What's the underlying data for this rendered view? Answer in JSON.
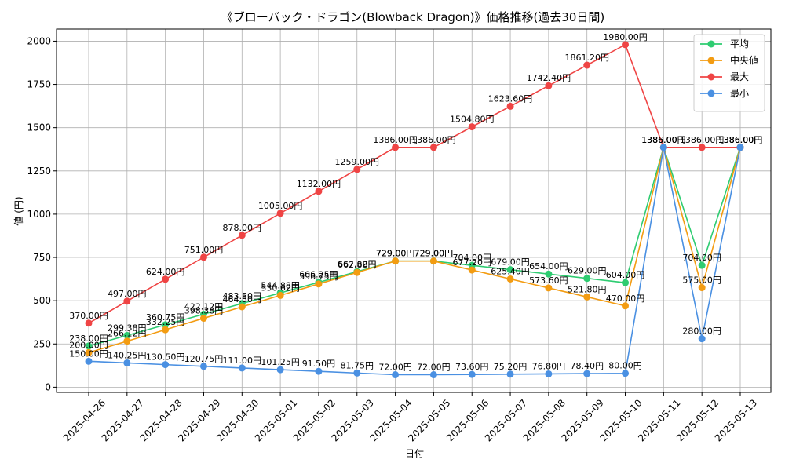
{
  "chart_data": {
    "type": "line",
    "title": "《ブローバック・ドラゴン(Blowback Dragon)》価格推移(過去30日間)",
    "xlabel": "日付",
    "ylabel": "値 (円)",
    "unit_suffix": "円",
    "ylim": [
      -30,
      2070
    ],
    "yticks": [
      0,
      250,
      500,
      750,
      1000,
      1250,
      1500,
      1750,
      2000
    ],
    "grid": true,
    "legend_position": "top-right",
    "categories": [
      "2025-04-26",
      "2025-04-27",
      "2025-04-28",
      "2025-04-29",
      "2025-04-30",
      "2025-05-01",
      "2025-05-02",
      "2025-05-03",
      "2025-05-04",
      "2025-05-05",
      "2025-05-06",
      "2025-05-07",
      "2025-05-08",
      "2025-05-09",
      "2025-05-10",
      "2025-05-11",
      "2025-05-12",
      "2025-05-13"
    ],
    "series": [
      {
        "name": "平均",
        "color": "#2ecc71",
        "values": [
          238.0,
          299.38,
          360.75,
          422.12,
          483.5,
          544.88,
          606.25,
          667.62,
          729.0,
          729.0,
          704.0,
          679.0,
          654.0,
          629.0,
          604.0,
          1386.0,
          704.0,
          1386.0
        ],
        "labels": [
          "238.00円",
          "299.38円",
          "360.75円",
          "422.12円",
          "483.50円",
          "544.88円",
          "606.25円",
          "667.62円",
          "729.00円",
          "729.00円",
          "704.00円",
          "679.00円",
          "654.00円",
          "629.00円",
          "604.00円",
          "1386.00円",
          "704.00円",
          "1386.00円"
        ]
      },
      {
        "name": "中央値",
        "color": "#f39c12",
        "values": [
          200.0,
          266.12,
          332.25,
          398.38,
          464.5,
          530.62,
          596.75,
          662.88,
          729.0,
          729.0,
          677.2,
          625.4,
          573.6,
          521.8,
          470.0,
          1386.0,
          575.0,
          1386.0
        ],
        "labels": [
          "200.00円",
          "266.12円",
          "332.25円",
          "398.38円",
          "464.50円",
          "530.62円",
          "596.75円",
          "662.88円",
          "729.00円",
          "729.00円",
          "677.20円",
          "625.40円",
          "573.60円",
          "521.80円",
          "470.00円",
          "1386.00円",
          "575.00円",
          "1386.00円"
        ]
      },
      {
        "name": "最大",
        "color": "#ef4444",
        "values": [
          370.0,
          497.0,
          624.0,
          751.0,
          878.0,
          1005.0,
          1132.0,
          1259.0,
          1386.0,
          1386.0,
          1504.8,
          1623.6,
          1742.4,
          1861.2,
          1980.0,
          1386.0,
          1386.0,
          1386.0
        ],
        "labels": [
          "370.00円",
          "497.00円",
          "624.00円",
          "751.00円",
          "878.00円",
          "1005.00円",
          "1132.00円",
          "1259.00円",
          "1386.00円",
          "1386.00円",
          "1504.80円",
          "1623.60円",
          "1742.40円",
          "1861.20円",
          "1980.00円",
          "1386.00円",
          "1386.00円",
          "1386.00円"
        ]
      },
      {
        "name": "最小",
        "color": "#4a90e2",
        "values": [
          150.0,
          140.25,
          130.5,
          120.75,
          111.0,
          101.25,
          91.5,
          81.75,
          72.0,
          72.0,
          73.6,
          75.2,
          76.8,
          78.4,
          80.0,
          1386.0,
          280.0,
          1386.0
        ],
        "labels": [
          "150.00円",
          "140.25円",
          "130.50円",
          "120.75円",
          "111.00円",
          "101.25円",
          "91.50円",
          "81.75円",
          "72.00円",
          "72.00円",
          "73.60円",
          "75.20円",
          "76.80円",
          "78.40円",
          "80.00円",
          "1386.00円",
          "280.00円",
          "1386.00円"
        ]
      }
    ]
  }
}
